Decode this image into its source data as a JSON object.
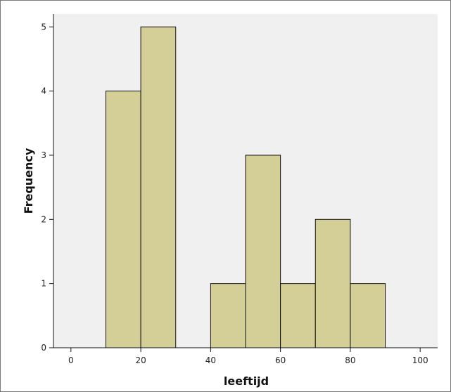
{
  "chart_data": {
    "type": "bar",
    "subtype": "histogram",
    "xlabel": "leeftijd",
    "ylabel": "Frequency",
    "xlim": [
      -5,
      105
    ],
    "ylim": [
      0,
      5.2
    ],
    "x_ticks": [
      0,
      20,
      40,
      60,
      80,
      100
    ],
    "y_ticks": [
      0,
      1,
      2,
      3,
      4,
      5
    ],
    "bins": [
      {
        "start": 10,
        "end": 20,
        "value": 4
      },
      {
        "start": 20,
        "end": 30,
        "value": 5
      },
      {
        "start": 40,
        "end": 50,
        "value": 1
      },
      {
        "start": 50,
        "end": 60,
        "value": 3
      },
      {
        "start": 60,
        "end": 70,
        "value": 1
      },
      {
        "start": 70,
        "end": 80,
        "value": 2
      },
      {
        "start": 80,
        "end": 90,
        "value": 1
      }
    ],
    "colors": {
      "bar_fill": "#d4cf96",
      "bar_stroke": "#111111",
      "plot_background": "#f0f0f0"
    },
    "grid": false
  }
}
